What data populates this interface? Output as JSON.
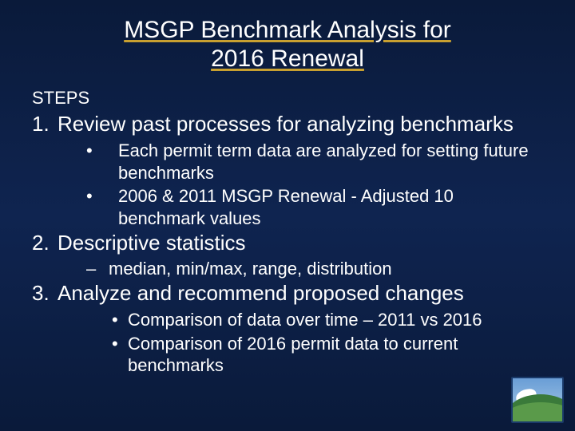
{
  "title_line1": "MSGP Benchmark Analysis for",
  "title_line2": "2016 Renewal",
  "steps_label": "STEPS",
  "item1": {
    "num": "1.",
    "text": "Review past processes for analyzing benchmarks"
  },
  "item1_sub1": "Each permit term data are analyzed for setting future benchmarks",
  "item1_sub2": "2006 & 2011 MSGP Renewal - Adjusted 10 benchmark values",
  "item2": {
    "num": "2.",
    "text": "Descriptive statistics"
  },
  "item2_sub1": "median, min/max, range, distribution",
  "item3": {
    "num": "3.",
    "text": "Analyze and recommend proposed changes"
  },
  "item3_sub1": "Comparison of data over time – 2011 vs 2016",
  "item3_sub2": "Comparison of 2016 permit data to current benchmarks",
  "colors": {
    "background_top": "#0a1a3a",
    "background_mid": "#0f2450",
    "text": "#ffffff",
    "underline": "#c8a030"
  },
  "fonts": {
    "title_size_pt": 30,
    "body_size_pt": 26,
    "sub_size_pt": 22,
    "family": "Arial"
  }
}
